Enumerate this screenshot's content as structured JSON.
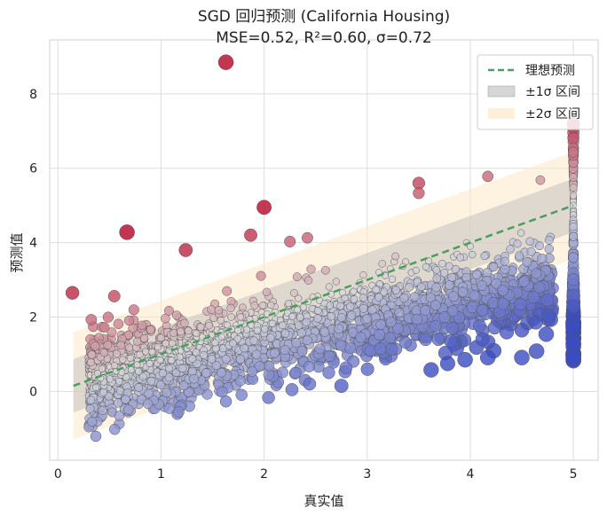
{
  "chart_data": {
    "type": "scatter",
    "title": "SGD 回归预测 (California Housing)",
    "subtitle": "MSE=0.52, R²=0.60, σ=0.72",
    "xlabel": "真实值",
    "ylabel": "预测值",
    "xlim": [
      -0.08,
      5.24
    ],
    "ylim": [
      -1.85,
      9.45
    ],
    "xticks": [
      "0",
      "1",
      "2",
      "3",
      "4",
      "5"
    ],
    "yticks": [
      "0",
      "2",
      "4",
      "6",
      "8"
    ],
    "grid": true,
    "legend_position": "top-right",
    "legend": [
      {
        "label": "理想预测",
        "kind": "dashed-line",
        "color": "#4a9e5c"
      },
      {
        "label": "±1σ 区间",
        "kind": "band",
        "color": "#b7b7b7"
      },
      {
        "label": "±2σ 区间",
        "kind": "band",
        "color": "#fde8c8"
      }
    ],
    "ideal_line": {
      "x": [
        0.15,
        5.0
      ],
      "y": [
        0.15,
        5.0
      ]
    },
    "band_fit": {
      "slope": 1.0,
      "intercept": 0.0,
      "x_range": [
        0.15,
        5.0
      ]
    },
    "sigma": 0.72,
    "colormap": "coolwarm (by residual)",
    "notable_points": [
      {
        "x": 1.63,
        "y": 8.85
      },
      {
        "x": 0.67,
        "y": 4.28
      },
      {
        "x": 2.0,
        "y": 4.95
      },
      {
        "x": 3.5,
        "y": 5.6
      },
      {
        "x": 4.17,
        "y": 5.78
      },
      {
        "x": 0.14,
        "y": 2.65
      },
      {
        "x": 1.24,
        "y": 3.8
      },
      {
        "x": 1.87,
        "y": 4.2
      },
      {
        "x": 2.25,
        "y": 4.03
      },
      {
        "x": 2.42,
        "y": 4.13
      },
      {
        "x": 3.5,
        "y": 5.33
      },
      {
        "x": 4.68,
        "y": 5.68
      },
      {
        "x": 2.75,
        "y": 0.15
      },
      {
        "x": 1.63,
        "y": -0.27
      },
      {
        "x": 0.55,
        "y": -1.02
      },
      {
        "x": 1.17,
        "y": -0.55
      },
      {
        "x": 3.62,
        "y": 0.58
      },
      {
        "x": 3.78,
        "y": 0.75
      },
      {
        "x": 3.95,
        "y": 0.85
      },
      {
        "x": 4.17,
        "y": 0.91
      },
      {
        "x": 4.5,
        "y": 0.91
      },
      {
        "x": 4.5,
        "y": 1.65
      },
      {
        "x": 5.0,
        "y": 0.85
      }
    ],
    "capped_column": {
      "x": 5.0,
      "y_range": [
        0.8,
        7.2
      ]
    },
    "scatter_cloud": {
      "n": 2200,
      "noise_sd": 0.55,
      "seed": 7
    }
  }
}
